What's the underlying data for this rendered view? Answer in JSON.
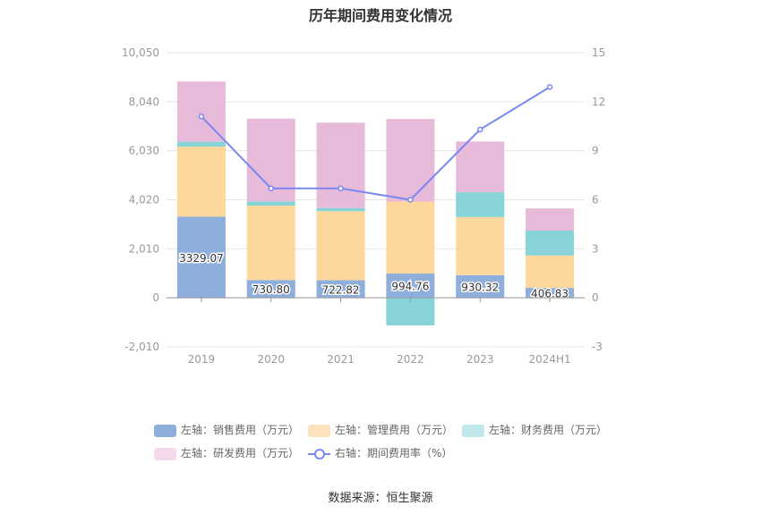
{
  "chart_data": {
    "type": "bar",
    "title": "历年期间费用变化情况",
    "categories": [
      "2019",
      "2020",
      "2021",
      "2022",
      "2023",
      "2024H1"
    ],
    "left_axis": {
      "min": -2010,
      "max": 10050,
      "ticks": [
        -2010,
        0,
        2010,
        4020,
        6030,
        8040,
        10050
      ],
      "tick_labels": [
        "-2,010",
        "0",
        "2,010",
        "4,020",
        "6,030",
        "8,040",
        "10,050"
      ]
    },
    "right_axis": {
      "min": -3,
      "max": 15,
      "ticks": [
        -3,
        0,
        3,
        6,
        9,
        12,
        15
      ],
      "tick_labels": [
        "-3",
        "0",
        "3",
        "6",
        "9",
        "12",
        "15"
      ]
    },
    "grid": true,
    "series": [
      {
        "name": "左轴：销售费用（万元）",
        "kind": "bar",
        "color": "#8eaedb",
        "values": [
          3329.07,
          730.8,
          722.82,
          994.76,
          930.32,
          406.83
        ],
        "labels": [
          "3329.07",
          "730.80",
          "722.82",
          "994.76",
          "930.32",
          "406.83"
        ]
      },
      {
        "name": "左轴：管理费用（万元）",
        "kind": "bar",
        "color": "#fdd89c",
        "values": [
          2870,
          3050,
          2830,
          2950,
          2380,
          1330
        ]
      },
      {
        "name": "左轴：财务费用（万元）",
        "kind": "bar",
        "color": "#86d4d8",
        "values": [
          200,
          170,
          130,
          -1130,
          1020,
          1020
        ]
      },
      {
        "name": "左轴：研发费用（万元）",
        "kind": "bar",
        "color": "#e8bad9",
        "values": [
          2470,
          3400,
          3500,
          3390,
          2080,
          910
        ]
      },
      {
        "name": "右轴：期间费用率（%）",
        "kind": "line",
        "color": "#7b87f0",
        "values": [
          11.1,
          6.7,
          6.7,
          6.0,
          10.3,
          12.9
        ]
      }
    ],
    "legend": "bottom"
  },
  "source": "数据来源：恒生聚源"
}
